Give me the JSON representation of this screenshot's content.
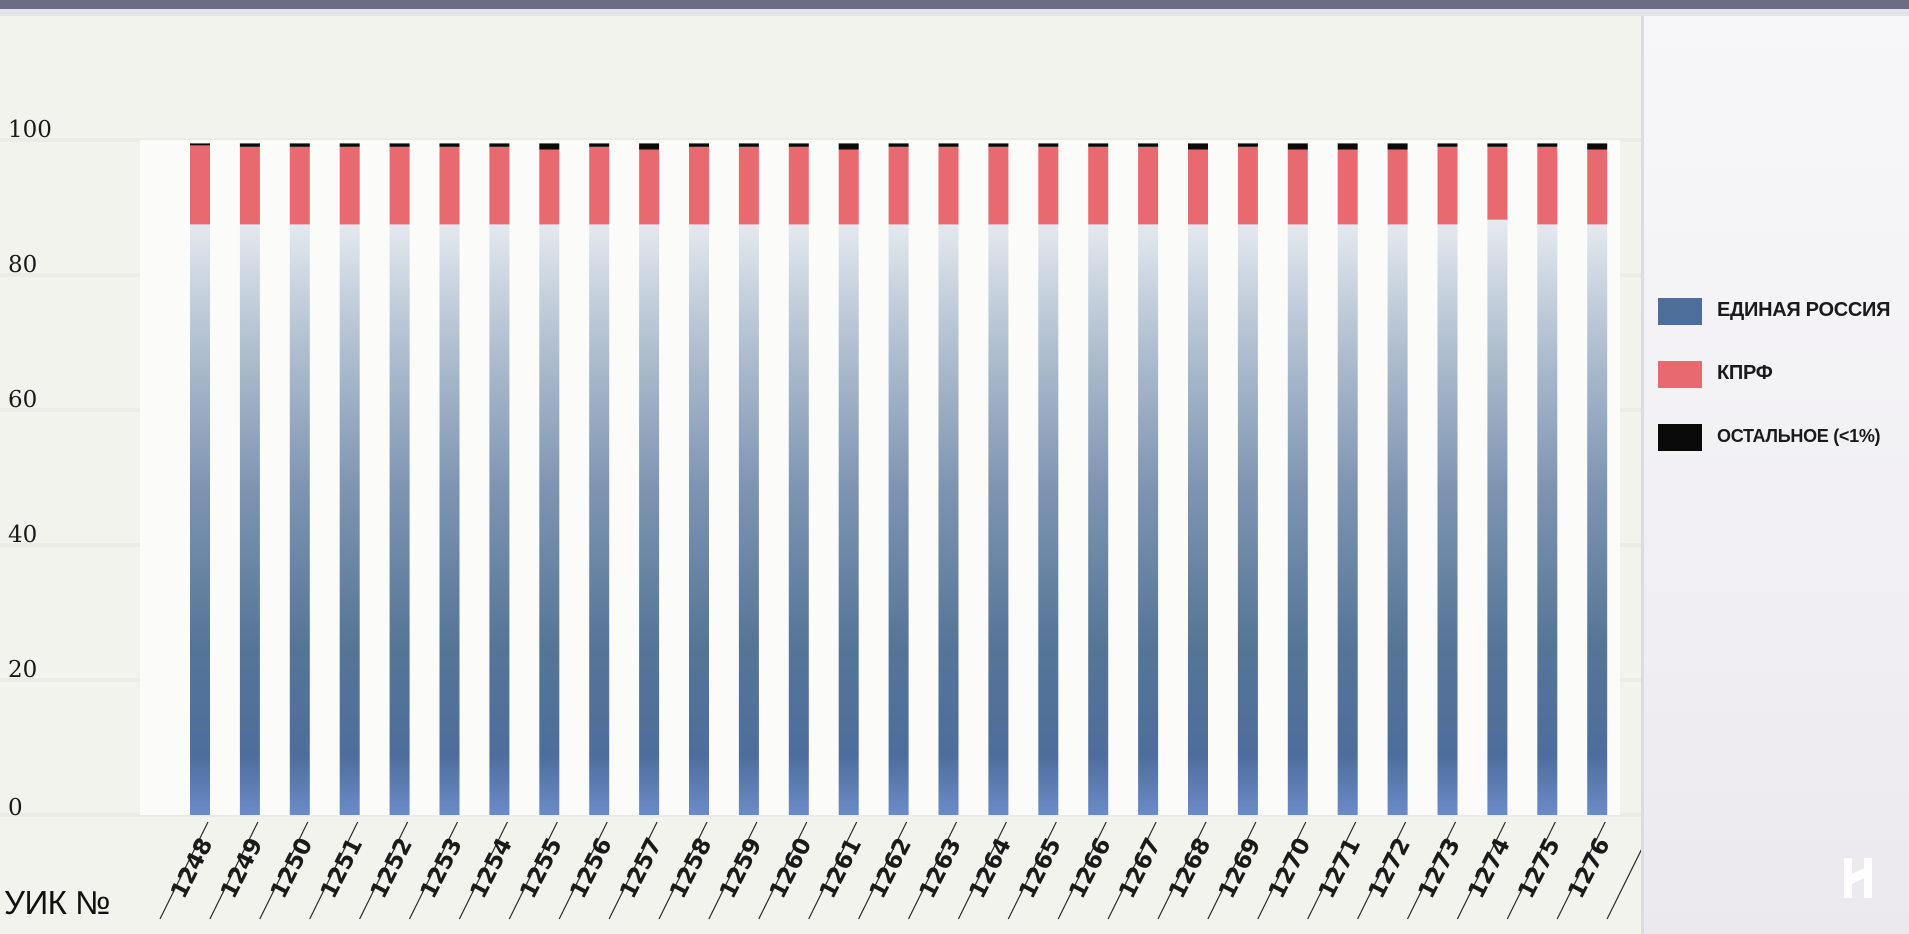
{
  "chart_data": {
    "type": "bar",
    "stacked": true,
    "xlabel": "УИК №",
    "ylim": [
      0,
      100
    ],
    "yticks": [
      0,
      20,
      40,
      60,
      80,
      100
    ],
    "grid": true,
    "legend_position": "right",
    "categories": [
      "1248",
      "1249",
      "1250",
      "1251",
      "1252",
      "1253",
      "1254",
      "1255",
      "1256",
      "1257",
      "1258",
      "1259",
      "1260",
      "1261",
      "1262",
      "1263",
      "1264",
      "1265",
      "1266",
      "1267",
      "1268",
      "1269",
      "1270",
      "1271",
      "1272",
      "1273",
      "1274",
      "1275",
      "1276"
    ],
    "series": [
      {
        "name": "ЕДИНАЯ РОССИЯ",
        "color": "#4d6e9a",
        "values": [
          87.5,
          87.5,
          87.5,
          87.5,
          87.5,
          87.5,
          87.5,
          87.5,
          87.5,
          87.5,
          87.5,
          87.5,
          87.5,
          87.5,
          87.5,
          87.5,
          87.5,
          87.5,
          87.5,
          87.5,
          87.5,
          87.5,
          87.5,
          87.5,
          87.5,
          87.5,
          88.2,
          87.5,
          87.5
        ]
      },
      {
        "name": "КПРФ",
        "color": "#e8696f",
        "values": [
          11.7,
          11.5,
          11.5,
          11.5,
          11.5,
          11.5,
          11.5,
          11.1,
          11.5,
          11.1,
          11.5,
          11.5,
          11.5,
          11.1,
          11.5,
          11.5,
          11.5,
          11.5,
          11.5,
          11.5,
          11.1,
          11.5,
          11.1,
          11.1,
          11.1,
          11.5,
          10.8,
          11.5,
          11.1
        ]
      },
      {
        "name": "ОСТАЛЬНОЕ (<1%)",
        "color": "#0a0a0a",
        "values": [
          0.3,
          0.5,
          0.5,
          0.5,
          0.5,
          0.5,
          0.5,
          0.9,
          0.5,
          0.9,
          0.5,
          0.5,
          0.5,
          0.9,
          0.5,
          0.5,
          0.5,
          0.5,
          0.5,
          0.5,
          0.9,
          0.5,
          0.9,
          0.9,
          0.9,
          0.5,
          0.5,
          0.5,
          0.9
        ]
      }
    ]
  }
}
